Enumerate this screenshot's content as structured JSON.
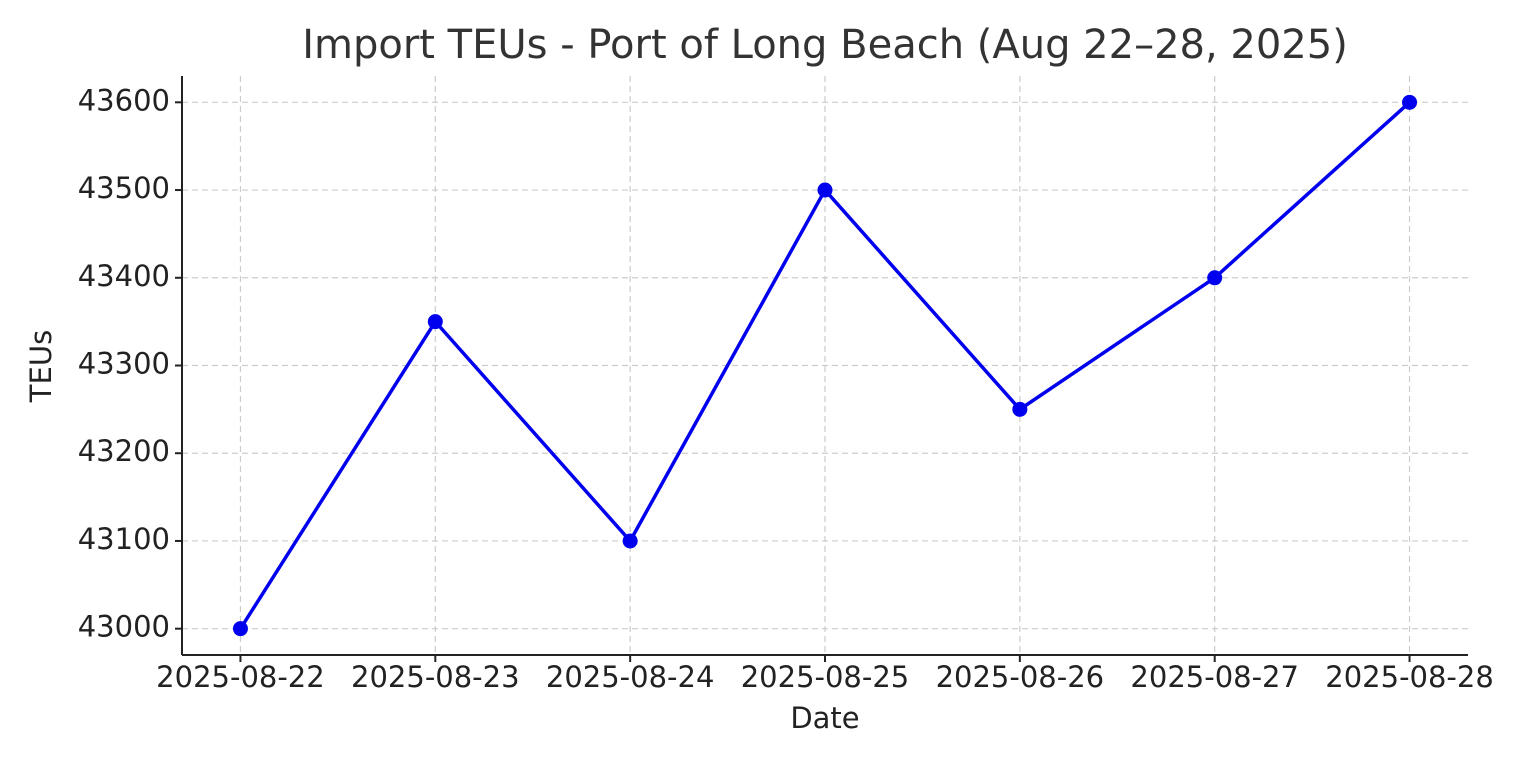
{
  "chart_data": {
    "type": "line",
    "title": "Import TEUs - Port of Long Beach (Aug 22–28, 2025)",
    "x_label": "Date",
    "y_label": "TEUs",
    "x": [
      "2025-08-22",
      "2025-08-23",
      "2025-08-24",
      "2025-08-25",
      "2025-08-26",
      "2025-08-27",
      "2025-08-28"
    ],
    "values": [
      43000,
      43350,
      43100,
      43500,
      43250,
      43400,
      43600
    ],
    "color": "#0000ee",
    "marker": "circle",
    "ylim": [
      42970,
      43630
    ],
    "yticks": [
      43000,
      43100,
      43200,
      43300,
      43400,
      43500,
      43600
    ],
    "grid": true
  }
}
